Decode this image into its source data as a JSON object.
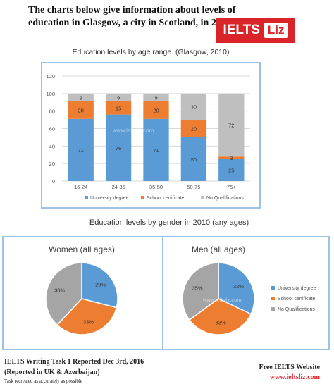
{
  "header": {
    "text": "The charts below give information about levels of education in Glasgow, a city in Scotland, in 2010.",
    "logo_left": "IELTS",
    "logo_right": "Liz"
  },
  "watermarks": {
    "bar": "www.ieltsliz.com",
    "pie": "www.ieltsliz.com"
  },
  "footer": {
    "line1": "IELTS Writing Task 1 Reported Dec 3rd, 2016",
    "line2": "(Reported in UK & Azerbaijan)",
    "line3": "Task recreated as accurately as possible",
    "right1": "Free IELTS Website",
    "right2": "www.ieltsliz.com"
  },
  "chart_data": [
    {
      "type": "bar",
      "stacked": true,
      "title": "Education levels by age range. (Glasgow, 2010)",
      "categories": [
        "16-24",
        "24-35",
        "35-50",
        "50-75",
        "75+"
      ],
      "series": [
        {
          "name": "University degree",
          "values": [
            71,
            76,
            71,
            50,
            25
          ],
          "color": "#5b9bd5"
        },
        {
          "name": "School certificate",
          "values": [
            20,
            15,
            20,
            20,
            3
          ],
          "color": "#ed7d31"
        },
        {
          "name": "No Qualifications",
          "values": [
            9,
            9,
            9,
            30,
            72
          ],
          "color": "#bfbfbf"
        }
      ],
      "ylim": [
        0,
        120
      ],
      "yticks": [
        0,
        20,
        40,
        60,
        80,
        100,
        120
      ],
      "legend": "bottom",
      "grid": true
    },
    {
      "type": "pie",
      "section_title": "Education levels by gender in 2010 (any ages)",
      "title": "Women (all ages)",
      "labels": [
        "University degree",
        "School certificate",
        "No Qualifications"
      ],
      "values": [
        29,
        33,
        38
      ],
      "colors": [
        "#5b9bd5",
        "#ed7d31",
        "#a5a5a5"
      ]
    },
    {
      "type": "pie",
      "title": "Men (all ages)",
      "labels": [
        "University degree",
        "School certificate",
        "No Qualifications"
      ],
      "values": [
        32,
        33,
        35
      ],
      "colors": [
        "#5b9bd5",
        "#ed7d31",
        "#a5a5a5"
      ],
      "legend": "right"
    }
  ]
}
